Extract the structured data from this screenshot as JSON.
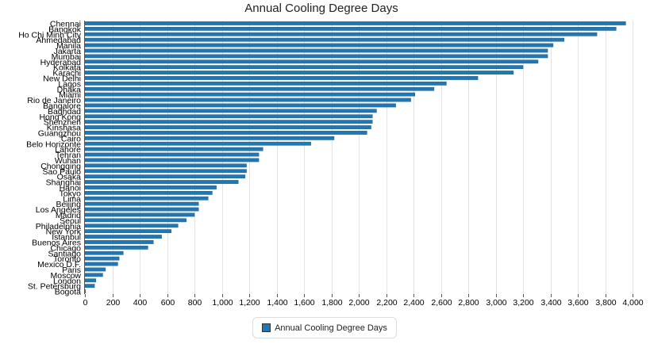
{
  "chart_data": {
    "type": "bar",
    "orientation": "horizontal",
    "title": "Annual Cooling Degree Days",
    "xlabel": "",
    "ylabel": "",
    "xlim": [
      0,
      4000
    ],
    "x_ticks": [
      "0",
      "200",
      "400",
      "600",
      "800",
      "1,000",
      "1,200",
      "1,400",
      "1,600",
      "1,800",
      "2,000",
      "2,200",
      "2,400",
      "2,600",
      "2,800",
      "3,000",
      "3,200",
      "3,400",
      "3,600",
      "3,800",
      "4,000"
    ],
    "grid": "vertical",
    "legend_position": "bottom",
    "bar_color": "#1f77b4",
    "categories": [
      "Chennai",
      "Bangkok",
      "Ho Chi Minh City",
      "Ahmedabad",
      "Manila",
      "Jakarta",
      "Mumbai",
      "Hyderabad",
      "Kolkata",
      "Karachi",
      "New Delhi",
      "Lagos",
      "Dhaka",
      "Miami",
      "Rio de Janeiro",
      "Bangalore",
      "Baghdad",
      "Hong Kong",
      "Shenzhen",
      "Kinshasa",
      "Guangzhou",
      "Cairo",
      "Belo Horizonte",
      "Lahore",
      "Tehran",
      "Wuhan",
      "Chongqing",
      "Sao Paulo",
      "Osaka",
      "Shanghai",
      "Hanoi",
      "Tokyo",
      "Lima",
      "Beijing",
      "Los Angeles",
      "Madrid",
      "Seoul",
      "Philadelphia",
      "New York",
      "Istanbul",
      "Buenos Aires",
      "Chicago",
      "Santiago",
      "Toronto",
      "Mexico D.F.",
      "Paris",
      "Moscow",
      "London",
      "St. Petersburg",
      "Bogota"
    ],
    "series": [
      {
        "name": "Annual Cooling Degree Days",
        "values": [
          3950,
          3880,
          3740,
          3500,
          3420,
          3380,
          3380,
          3310,
          3200,
          3130,
          2870,
          2640,
          2550,
          2410,
          2380,
          2270,
          2130,
          2100,
          2100,
          2090,
          2060,
          1820,
          1650,
          1300,
          1270,
          1270,
          1180,
          1180,
          1170,
          1120,
          960,
          930,
          900,
          830,
          830,
          800,
          740,
          680,
          630,
          560,
          500,
          460,
          280,
          250,
          240,
          150,
          130,
          80,
          70,
          5
        ]
      }
    ]
  }
}
